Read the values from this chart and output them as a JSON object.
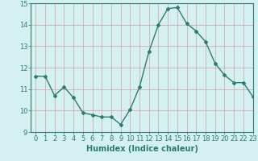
{
  "x": [
    0,
    1,
    2,
    3,
    4,
    5,
    6,
    7,
    8,
    9,
    10,
    11,
    12,
    13,
    14,
    15,
    16,
    17,
    18,
    19,
    20,
    21,
    22,
    23
  ],
  "y": [
    11.6,
    11.6,
    10.7,
    11.1,
    10.6,
    9.9,
    9.8,
    9.7,
    9.7,
    9.35,
    10.05,
    11.1,
    12.75,
    14.0,
    14.75,
    14.8,
    14.05,
    13.7,
    13.2,
    12.2,
    11.65,
    11.3,
    11.3,
    10.65
  ],
  "line_color": "#2d7d6e",
  "marker": "D",
  "marker_size": 2,
  "line_width": 1.0,
  "bg_color": "#d4f0f0",
  "grid_color": "#d4a0a0",
  "xlabel": "Humidex (Indice chaleur)",
  "ylim": [
    9,
    15
  ],
  "xlim": [
    -0.5,
    23
  ],
  "yticks": [
    9,
    10,
    11,
    12,
    13,
    14,
    15
  ],
  "xticks": [
    0,
    1,
    2,
    3,
    4,
    5,
    6,
    7,
    8,
    9,
    10,
    11,
    12,
    13,
    14,
    15,
    16,
    17,
    18,
    19,
    20,
    21,
    22,
    23
  ],
  "tick_color": "#2d7d6e",
  "xlabel_fontsize": 7,
  "tick_fontsize": 6
}
